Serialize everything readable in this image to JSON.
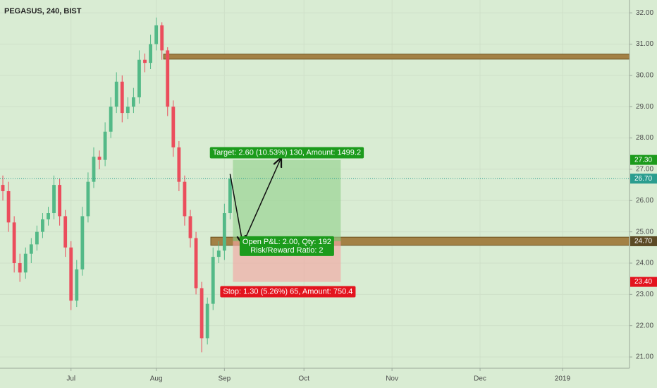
{
  "chart_data": {
    "type": "candlestick",
    "title": "PEGASUS, 240, BIST",
    "opens": [
      26.5,
      26.3,
      25.3,
      24.0,
      23.7,
      24.3,
      24.6,
      25.0,
      25.4,
      25.6,
      26.5,
      25.5,
      24.5,
      22.8,
      23.8,
      25.5,
      26.6,
      27.4,
      27.3,
      28.2,
      29.0,
      29.8,
      28.8,
      29.0,
      29.3,
      30.5,
      30.4,
      31.0,
      31.6,
      30.8,
      29.0,
      27.7,
      26.6,
      25.5,
      24.8,
      23.2,
      21.6,
      22.7,
      24.2,
      24.4,
      25.6
    ],
    "highs": [
      26.8,
      26.6,
      25.5,
      24.3,
      24.5,
      24.8,
      25.2,
      25.6,
      25.8,
      26.8,
      26.7,
      25.7,
      24.7,
      24.1,
      25.8,
      26.9,
      27.7,
      27.6,
      28.5,
      29.3,
      30.1,
      30.0,
      29.3,
      29.6,
      30.8,
      30.7,
      31.3,
      31.85,
      31.7,
      30.9,
      29.2,
      27.9,
      26.8,
      25.7,
      25.0,
      23.4,
      22.9,
      24.5,
      24.7,
      25.9,
      26.85
    ],
    "lows": [
      26.0,
      25.0,
      23.7,
      23.4,
      23.5,
      24.0,
      24.4,
      24.8,
      25.2,
      25.4,
      25.2,
      24.2,
      22.5,
      22.6,
      23.6,
      25.3,
      26.4,
      27.0,
      27.1,
      28.0,
      28.8,
      28.5,
      28.6,
      28.8,
      29.1,
      30.1,
      30.2,
      30.8,
      30.5,
      28.7,
      27.4,
      26.3,
      25.2,
      24.5,
      23.0,
      21.15,
      21.4,
      22.5,
      24.0,
      24.1,
      25.4
    ],
    "closes": [
      26.3,
      25.3,
      24.0,
      23.7,
      24.3,
      24.6,
      25.0,
      25.4,
      25.6,
      26.5,
      25.5,
      24.5,
      22.8,
      23.8,
      25.5,
      26.6,
      27.4,
      27.3,
      28.2,
      29.0,
      29.8,
      28.8,
      29.0,
      29.3,
      30.5,
      30.4,
      31.0,
      31.6,
      30.8,
      29.0,
      27.7,
      26.6,
      25.5,
      24.8,
      23.2,
      21.6,
      22.7,
      24.2,
      24.4,
      25.6,
      26.7
    ],
    "up_color": "#53b987",
    "down_color": "#eb4d5c",
    "xlim": [
      -0.5,
      110.3
    ],
    "xticks": [
      {
        "value": 12,
        "label": "Jul"
      },
      {
        "value": 27,
        "label": "Aug"
      },
      {
        "value": 39,
        "label": "Sep"
      },
      {
        "value": 53,
        "label": "Oct"
      },
      {
        "value": 68.5,
        "label": "Nov"
      },
      {
        "value": 84,
        "label": "Dec"
      },
      {
        "value": 98.5,
        "label": "2019"
      }
    ],
    "ylim": [
      20.64,
      32.41
    ],
    "yticks": [
      {
        "value": 21,
        "label": "21.00"
      },
      {
        "value": 22,
        "label": "22.00"
      },
      {
        "value": 23,
        "label": "23.00"
      },
      {
        "value": 24,
        "label": "24.00"
      },
      {
        "value": 25,
        "label": "25.00"
      },
      {
        "value": 26,
        "label": "26.00"
      },
      {
        "value": 27,
        "label": "27.00"
      },
      {
        "value": 28,
        "label": "28.00"
      },
      {
        "value": 29,
        "label": "29.00"
      },
      {
        "value": 30,
        "label": "30.00"
      },
      {
        "value": 31,
        "label": "31.00"
      },
      {
        "value": 32,
        "label": "32.00"
      }
    ],
    "grid": true,
    "last_price": {
      "value": 26.7,
      "label": "26.70"
    },
    "zones": [
      {
        "low": 30.52,
        "high": 30.68
      },
      {
        "low": 24.57,
        "high": 24.83
      }
    ],
    "position": {
      "entry": {
        "value": 24.7,
        "label": "24.70"
      },
      "target": {
        "value": 27.3,
        "label": "27.30"
      },
      "stop": {
        "value": 23.4,
        "label": "23.40"
      },
      "target_text": "Target: 2.60 (10.53%) 130, Amount: 1499.2",
      "pnl_text": "Open P&L: 2.00, Qty: 192",
      "ratio_text": "Risk/Reward Ratio: 2",
      "stop_text": "Stop: 1.30 (5.26%) 65, Amount: 750.4"
    }
  }
}
